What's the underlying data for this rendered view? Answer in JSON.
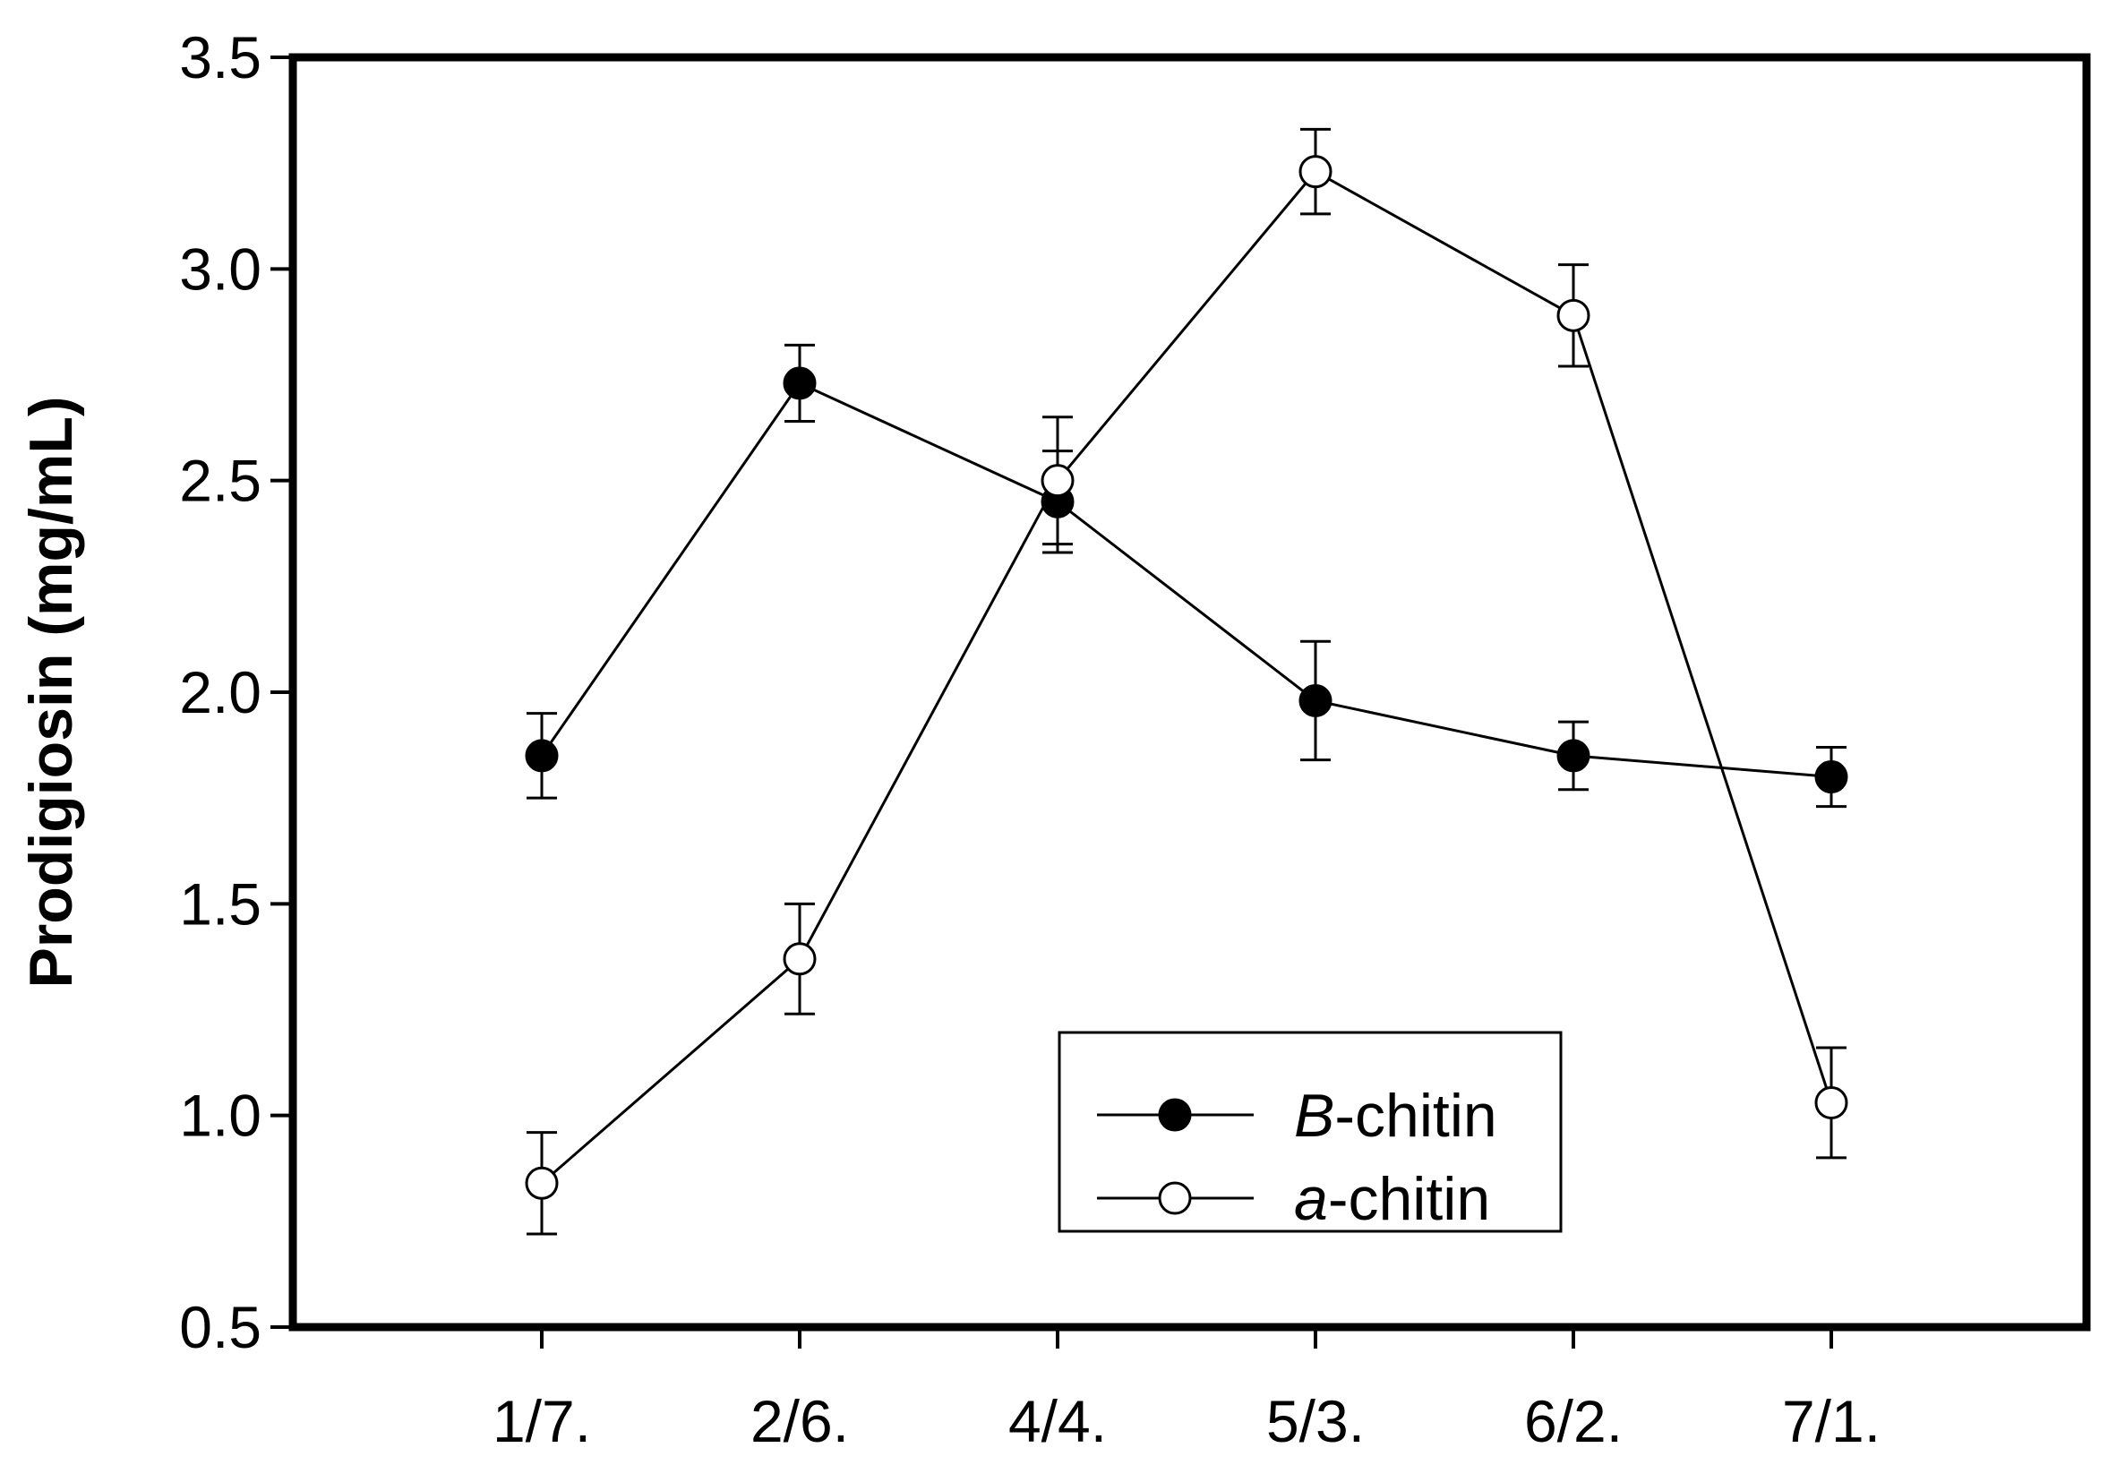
{
  "chart_data": {
    "type": "line",
    "title": "",
    "xlabel": "",
    "ylabel": "Prodigiosin (mg/mL)",
    "categories": [
      "1/7.",
      "2/6.",
      "4/4.",
      "5/3.",
      "6/2.",
      "7/1."
    ],
    "ylim": [
      0.5,
      3.5
    ],
    "yticks": [
      "0.5",
      "1.0",
      "1.5",
      "2.0",
      "2.5",
      "3.0",
      "3.5"
    ],
    "grid": false,
    "legend_position": "bottom-right",
    "series": [
      {
        "name_prefix": "B",
        "name_suffix": "-chitin",
        "marker": "filled-circle",
        "color": "#000000",
        "values": [
          1.85,
          2.73,
          2.45,
          1.98,
          1.85,
          1.8
        ],
        "errors": [
          0.1,
          0.09,
          0.12,
          0.14,
          0.08,
          0.07
        ]
      },
      {
        "name_prefix": "a",
        "name_suffix": "-chitin",
        "marker": "open-circle",
        "color": "#000000",
        "values": [
          0.84,
          1.37,
          2.5,
          3.23,
          2.89,
          1.03
        ],
        "errors": [
          0.12,
          0.13,
          0.15,
          0.1,
          0.12,
          0.13
        ]
      }
    ]
  }
}
